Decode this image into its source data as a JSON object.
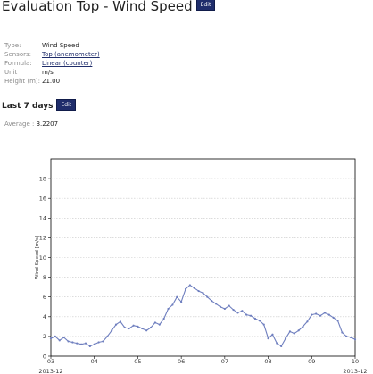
{
  "page": {
    "title": "Evaluation Top - Wind Speed",
    "edit_label": "Edit"
  },
  "meta": {
    "rows": [
      {
        "key": "Type:",
        "value": "Wind Speed",
        "link": false
      },
      {
        "key": "Sensors:",
        "value": "Top (anemometer)",
        "link": true
      },
      {
        "key": "Formula:",
        "value": "Linear (counter)",
        "link": true
      },
      {
        "key": "Unit",
        "value": "m/s",
        "link": false
      },
      {
        "key": "Height (m):",
        "value": "21.00",
        "link": false
      }
    ]
  },
  "section": {
    "title": "Last 7 days",
    "edit_label": "Edit",
    "average_key": "Average :",
    "average_value": "3.2207"
  },
  "chart_data": {
    "type": "line",
    "ylabel": "Wind Speed [m/s]",
    "ylim": [
      0,
      20
    ],
    "yticks": [
      0,
      2,
      4,
      6,
      8,
      10,
      12,
      14,
      16,
      18
    ],
    "xlim": [
      3,
      10
    ],
    "xticks": [
      {
        "value": 3,
        "label": "03",
        "sub": "2013-12"
      },
      {
        "value": 4,
        "label": "04",
        "sub": ""
      },
      {
        "value": 5,
        "label": "05",
        "sub": ""
      },
      {
        "value": 6,
        "label": "06",
        "sub": ""
      },
      {
        "value": 7,
        "label": "07",
        "sub": ""
      },
      {
        "value": 8,
        "label": "08",
        "sub": ""
      },
      {
        "value": 9,
        "label": "09",
        "sub": ""
      },
      {
        "value": 10,
        "label": "10",
        "sub": "2013-12"
      }
    ],
    "grid": true,
    "color": "#6f7fbf",
    "series": [
      {
        "x": [
          3.0,
          3.1,
          3.2,
          3.3,
          3.4,
          3.5,
          3.6,
          3.7,
          3.8,
          3.9,
          4.0,
          4.1,
          4.2,
          4.3,
          4.4,
          4.5,
          4.6,
          4.7,
          4.8,
          4.9,
          5.0,
          5.1,
          5.2,
          5.3,
          5.4,
          5.5,
          5.6,
          5.7,
          5.8,
          5.9,
          6.0,
          6.1,
          6.2,
          6.3,
          6.4,
          6.5,
          6.6,
          6.7,
          6.8,
          6.9,
          7.0,
          7.1,
          7.2,
          7.3,
          7.4,
          7.5,
          7.6,
          7.7,
          7.8,
          7.9,
          8.0,
          8.1,
          8.2,
          8.3,
          8.4,
          8.5,
          8.6,
          8.7,
          8.8,
          8.9,
          9.0,
          9.1,
          9.2,
          9.3,
          9.4,
          9.5,
          9.6,
          9.7,
          9.8,
          9.9,
          10.0
        ],
        "y": [
          1.8,
          2.0,
          1.6,
          1.9,
          1.5,
          1.4,
          1.3,
          1.2,
          1.3,
          1.0,
          1.2,
          1.4,
          1.5,
          2.0,
          2.6,
          3.2,
          3.5,
          2.9,
          2.8,
          3.1,
          3.0,
          2.8,
          2.6,
          2.9,
          3.4,
          3.2,
          3.8,
          4.8,
          5.2,
          6.0,
          5.5,
          6.8,
          7.2,
          6.9,
          6.6,
          6.4,
          6.0,
          5.6,
          5.3,
          5.0,
          4.8,
          5.1,
          4.7,
          4.4,
          4.6,
          4.2,
          4.1,
          3.8,
          3.6,
          3.2,
          1.8,
          2.2,
          1.3,
          1.0,
          1.8,
          2.5,
          2.3,
          2.6,
          3.0,
          3.5,
          4.2,
          4.3,
          4.1,
          4.4,
          4.2,
          3.9,
          3.6,
          2.4,
          2.0,
          1.9,
          1.7
        ]
      }
    ]
  }
}
